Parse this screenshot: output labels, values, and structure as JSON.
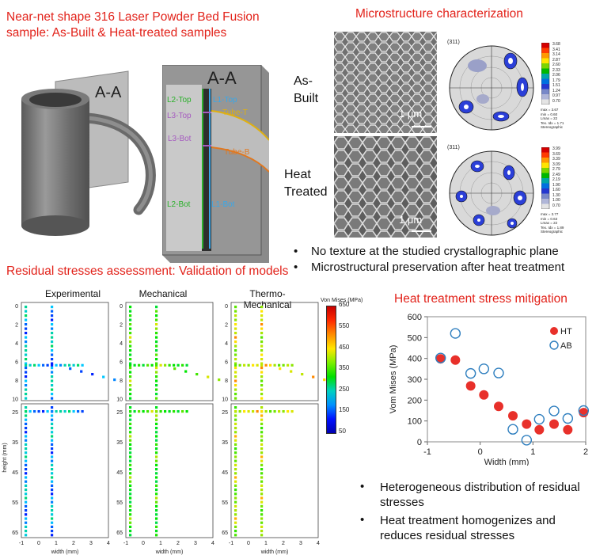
{
  "section1": {
    "title_line1": "Near-net shape 316 Laser Powder Bed Fusion",
    "title_line2": "sample: As-Built & Heat-treated samples"
  },
  "cad": {
    "section_label_small": "A-A",
    "section_label_large": "A-A",
    "labels": {
      "l2_top": "L2-Top",
      "l1_top": "L1-Top",
      "l3_top": "L3-Top",
      "tube_t": "Tube-T",
      "l3_bot": "L3-Bot",
      "tube_b": "Tube-B",
      "l2_bot": "L2-Bot",
      "l1_bot": "L1-Bot"
    }
  },
  "micro": {
    "title": "Microstructure characterization",
    "as_built_1": "As-",
    "as_built_2": "Built",
    "heat_1": "Heat",
    "heat_2": "Treated",
    "scale": "1 μm",
    "pf_label": "(311)",
    "pf1": {
      "scale": [
        "3.68",
        "3.41",
        "3.14",
        "2.87",
        "2.60",
        "2.33",
        "2.06",
        "1.79",
        "1.51",
        "1.24",
        "0.97",
        "0.70"
      ],
      "stats": [
        "max = 3.67",
        "min = 0.60",
        "Lmax = 22",
        "Tex. Idx = 1.71",
        "Stereographic"
      ]
    },
    "pf2": {
      "scale": [
        "3.99",
        "3.69",
        "3.39",
        "3.09",
        "2.79",
        "2.49",
        "2.19",
        "1.90",
        "1.60",
        "1.30",
        "1.00",
        "0.70"
      ],
      "stats": [
        "max = 3.77",
        "min = 0.63",
        "Lmax = 22",
        "Tex. Idx = 1.89",
        "Stereographic"
      ]
    },
    "bullets": [
      "No texture at the studied crystallographic plane",
      "Microstructural preservation after heat treatment"
    ]
  },
  "residual": {
    "title": "Residual stresses assessment: Validation of models",
    "panels": [
      "Experimental",
      "Mechanical",
      "Thermo-Mechanical"
    ],
    "ylabel": "height (mm)",
    "xlabel": "width (mm)",
    "xticks": [
      "-1",
      "0",
      "1",
      "2",
      "3",
      "4"
    ],
    "top_yticks": [
      "0",
      "2",
      "4",
      "6",
      "8",
      "10"
    ],
    "bot_yticks": [
      "25",
      "35",
      "45",
      "55",
      "65"
    ],
    "colorbar_title": "Von Mises (MPa)",
    "colorbar_ticks": [
      "650",
      "550",
      "450",
      "350",
      "250",
      "150",
      "50"
    ],
    "colors": {
      "low": "#0000ff",
      "mid": "#00ff00",
      "high": "#ff0000"
    }
  },
  "mitigation": {
    "title": "Heat treatment stress mitigation",
    "bullets": [
      {
        "line1": "Heterogeneous distribution of residual",
        "line2": "stresses"
      },
      {
        "line1": "Heat treatment homogenizes and",
        "line2": "reduces residual stresses"
      }
    ]
  },
  "chart_data": {
    "type": "scatter",
    "xlabel": "Width (mm)",
    "ylabel": "Vom Mises (MPa)",
    "xlim": [
      -1,
      2
    ],
    "ylim": [
      0,
      600
    ],
    "xticks": [
      -1,
      0,
      1,
      2
    ],
    "yticks": [
      0,
      100,
      200,
      300,
      400,
      500,
      600
    ],
    "legend_position": "top-right",
    "series": [
      {
        "name": "HT",
        "marker": "filled",
        "color": "#e8302a",
        "x": [
          -0.75,
          -0.47,
          -0.18,
          0.07,
          0.35,
          0.62,
          0.88,
          1.12,
          1.4,
          1.66,
          1.96
        ],
        "y": [
          398,
          392,
          268,
          225,
          170,
          125,
          85,
          58,
          85,
          58,
          140
        ]
      },
      {
        "name": "AB",
        "marker": "hollow",
        "color": "#2f7fbf",
        "x": [
          -0.75,
          -0.47,
          -0.18,
          0.07,
          0.35,
          0.62,
          0.88,
          1.12,
          1.4,
          1.66,
          1.96
        ],
        "y": [
          402,
          520,
          328,
          350,
          330,
          60,
          8,
          108,
          148,
          112,
          150
        ]
      }
    ]
  }
}
